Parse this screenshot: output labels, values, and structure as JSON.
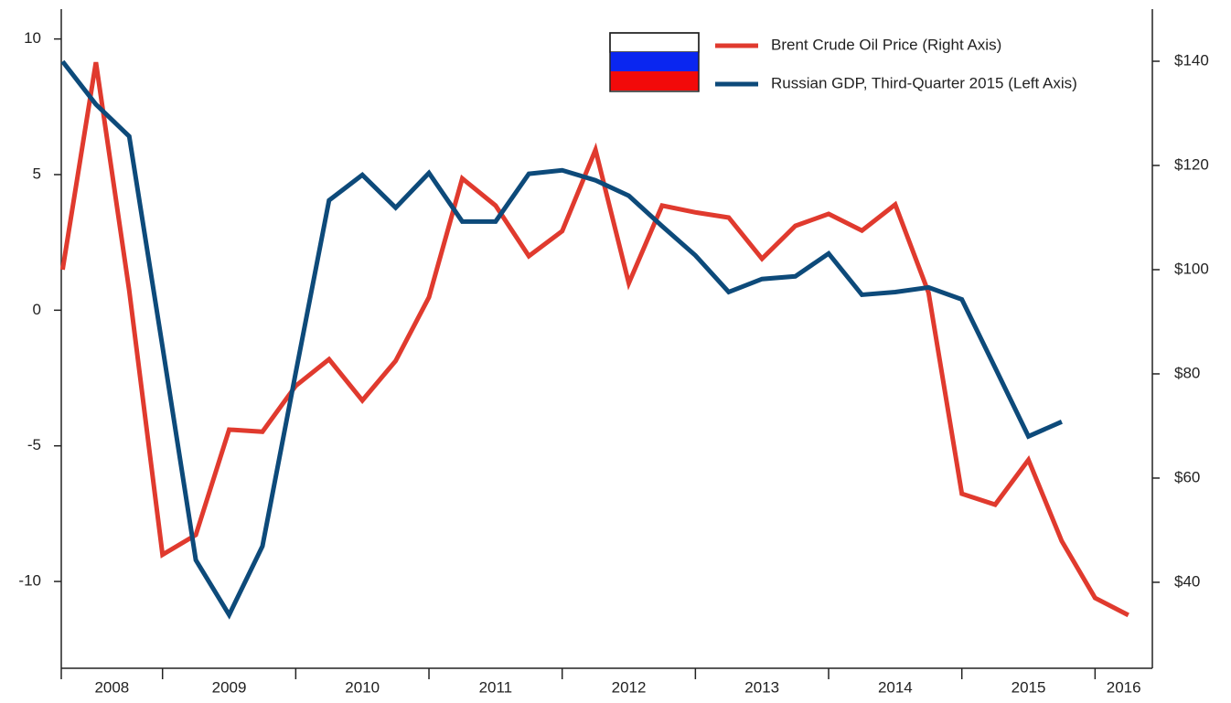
{
  "chart_data": {
    "type": "line",
    "categories": [
      "2008",
      "2009",
      "2010",
      "2011",
      "2012",
      "2013",
      "2014",
      "2015",
      "2016"
    ],
    "x": [
      2008.25,
      2008.5,
      2008.75,
      2009,
      2009.25,
      2009.5,
      2009.75,
      2010,
      2010.25,
      2010.5,
      2010.75,
      2011,
      2011.25,
      2011.5,
      2011.75,
      2012,
      2012.25,
      2012.5,
      2012.75,
      2013,
      2013.25,
      2013.5,
      2013.75,
      2014,
      2014.25,
      2014.5,
      2014.75,
      2015,
      2015.25,
      2015.5,
      2015.75,
      2016,
      2016.25
    ],
    "xlim": [
      2008.24,
      2016.43
    ],
    "xticks": [
      2009,
      2010,
      2011,
      2012,
      2013,
      2014,
      2015,
      2016
    ],
    "ylim": [
      -13.2,
      11.1
    ],
    "yticks": [
      10,
      5,
      0,
      -5,
      -10
    ],
    "y2lim": [
      23.5,
      150
    ],
    "y2ticks": [
      {
        "value": 140,
        "label": "$140"
      },
      {
        "value": 120,
        "label": "$120"
      },
      {
        "value": 100,
        "label": "$100"
      },
      {
        "value": 80,
        "label": "$80"
      },
      {
        "value": 60,
        "label": "$60"
      },
      {
        "value": 40,
        "label": "$40"
      }
    ],
    "legend": "top-right",
    "series": [
      {
        "name": "Brent Crude Oil Price (Right Axis)",
        "color": "#e03a2e",
        "axis": "y2",
        "values": [
          100,
          139.8,
          96,
          45.3,
          49.1,
          69.3,
          68.9,
          77.7,
          82.8,
          74.9,
          82.5,
          94.7,
          117.5,
          112.3,
          102.6,
          107.4,
          123,
          97.4,
          112.3,
          111,
          110,
          102.1,
          108.4,
          110.7,
          107.5,
          112.5,
          95.6,
          57,
          54.9,
          63.5,
          47.9,
          37,
          33.7
        ]
      },
      {
        "name": "Russian GDP, Third-Quarter 2015 (Left Axis)",
        "color": "#0d4a7a",
        "axis": "y",
        "values": [
          9.17,
          7.59,
          6.41,
          -1.35,
          -9.21,
          -11.23,
          -8.7,
          -2.3,
          4.05,
          4.99,
          3.78,
          5.06,
          3.27,
          3.27,
          5.03,
          5.16,
          4.79,
          4.22,
          3.1,
          2.02,
          0.67,
          1.15,
          1.25,
          2.09,
          0.57,
          0.67,
          0.84,
          0.4,
          -2.12,
          -4.65,
          -4.11,
          null,
          null
        ]
      }
    ]
  }
}
